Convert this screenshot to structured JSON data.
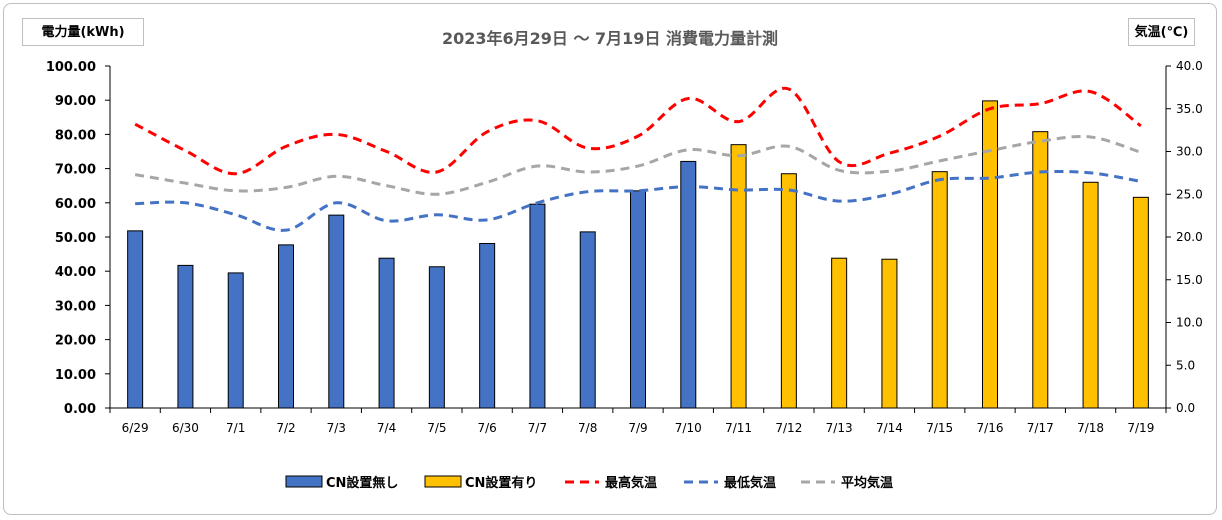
{
  "chart_data": {
    "type": "bar+line",
    "title": "2023年6月29日 ～ 7月19日 消費電力量計測",
    "left_axis_label": "電力量(kWh)",
    "right_axis_label": "気温(℃)",
    "left_ylim": [
      0,
      100
    ],
    "left_ticks": [
      "0.00",
      "10.00",
      "20.00",
      "30.00",
      "40.00",
      "50.00",
      "60.00",
      "70.00",
      "80.00",
      "90.00",
      "100.00"
    ],
    "right_ylim": [
      0,
      40
    ],
    "right_ticks": [
      "0.0",
      "5.0",
      "10.0",
      "15.0",
      "20.0",
      "25.0",
      "30.0",
      "35.0",
      "40.0"
    ],
    "categories": [
      "6/29",
      "6/30",
      "7/1",
      "7/2",
      "7/3",
      "7/4",
      "7/5",
      "7/6",
      "7/7",
      "7/8",
      "7/9",
      "7/10",
      "7/11",
      "7/12",
      "7/13",
      "7/14",
      "7/15",
      "7/16",
      "7/17",
      "7/18",
      "7/19"
    ],
    "bar_series": [
      {
        "name": "CN設置無し",
        "color": "#4472c4",
        "values": [
          51.8,
          41.7,
          39.5,
          47.7,
          56.4,
          43.8,
          41.3,
          48.1,
          59.6,
          51.5,
          63.5,
          72.1,
          null,
          null,
          null,
          null,
          null,
          null,
          null,
          null,
          null
        ]
      },
      {
        "name": "CN設置有り",
        "color": "#ffc000",
        "values": [
          null,
          null,
          null,
          null,
          null,
          null,
          null,
          null,
          null,
          null,
          null,
          null,
          77.0,
          68.5,
          43.8,
          43.5,
          69.1,
          89.8,
          80.8,
          66.0,
          61.6
        ]
      }
    ],
    "line_series": [
      {
        "name": "最高気温",
        "color": "#ff0000",
        "axis": "right",
        "values": [
          33.2,
          30.1,
          27.4,
          30.6,
          32.0,
          30.0,
          27.6,
          32.3,
          33.6,
          30.4,
          31.8,
          36.2,
          33.5,
          37.3,
          28.8,
          29.8,
          31.8,
          35.0,
          35.6,
          37.0,
          33.0
        ]
      },
      {
        "name": "最低気温",
        "color": "#4472c4",
        "axis": "right",
        "values": [
          23.9,
          24.0,
          22.6,
          20.8,
          24.0,
          21.9,
          22.6,
          22.0,
          24.0,
          25.3,
          25.4,
          25.9,
          25.5,
          25.5,
          24.2,
          25.0,
          26.7,
          26.9,
          27.6,
          27.5,
          26.5
        ]
      },
      {
        "name": "平均気温",
        "color": "#a6a6a6",
        "axis": "right",
        "values": [
          27.3,
          26.3,
          25.4,
          25.8,
          27.1,
          26.0,
          25.0,
          26.4,
          28.3,
          27.6,
          28.3,
          30.2,
          29.5,
          30.6,
          27.8,
          27.7,
          28.9,
          30.1,
          31.2,
          31.7,
          29.9
        ]
      }
    ],
    "legend_position": "bottom",
    "grid": false
  }
}
